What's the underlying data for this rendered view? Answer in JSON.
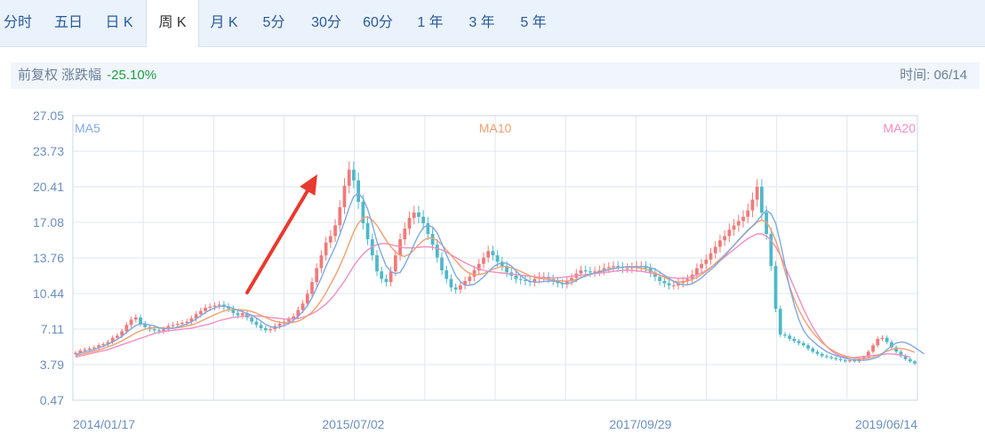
{
  "tabs": [
    {
      "label": "分时",
      "active": false
    },
    {
      "label": "五日",
      "active": false
    },
    {
      "label": "日 K",
      "active": false
    },
    {
      "label": "周 K",
      "active": true
    },
    {
      "label": "月 K",
      "active": false
    },
    {
      "label": "5分",
      "active": false
    },
    {
      "label": "30分",
      "active": false
    },
    {
      "label": "60分",
      "active": false
    },
    {
      "label": "1 年",
      "active": false
    },
    {
      "label": "3 年",
      "active": false
    },
    {
      "label": "5 年",
      "active": false
    }
  ],
  "info": {
    "left_label": "前复权 涨跌幅",
    "change_pct": "-25.10%",
    "right_label": "时间: 06/14"
  },
  "colors": {
    "up": "#f07a7a",
    "down": "#4fb8c8",
    "ma5": "#7fa9e0",
    "ma10": "#f0a070",
    "ma20": "#f08ec0",
    "arrow": "#e83a2e"
  },
  "chart_data": {
    "type": "candlestick",
    "y_ticks": [
      "27.05",
      "23.73",
      "20.41",
      "17.08",
      "13.76",
      "10.44",
      "7.11",
      "3.79",
      "0.47"
    ],
    "y_range": [
      0.47,
      27.05
    ],
    "x_labels": [
      {
        "label": "2014/01/17",
        "t": 0.0
      },
      {
        "label": "2015/07/02",
        "t": 0.332
      },
      {
        "label": "2017/09/29",
        "t": 0.672
      },
      {
        "label": "2019/06/14",
        "t": 1.0
      }
    ],
    "legend": {
      "ma5": "MA5",
      "ma10": "MA10",
      "ma20": "MA20"
    },
    "close": [
      4.9,
      5.1,
      5.2,
      5.3,
      5.4,
      5.6,
      5.7,
      5.9,
      6.3,
      6.5,
      6.9,
      7.5,
      8.0,
      8.2,
      7.6,
      7.3,
      7.1,
      7.0,
      6.9,
      7.1,
      7.4,
      7.5,
      7.6,
      7.7,
      7.8,
      8.1,
      8.5,
      8.8,
      9.1,
      9.2,
      9.3,
      9.4,
      9.2,
      9.0,
      8.6,
      8.4,
      8.6,
      8.2,
      7.8,
      7.5,
      7.2,
      7.0,
      7.1,
      7.4,
      7.6,
      7.8,
      8.0,
      8.3,
      8.9,
      9.5,
      10.4,
      11.5,
      12.8,
      14.0,
      15.2,
      15.8,
      16.8,
      18.5,
      20.5,
      22.0,
      21.0,
      19.0,
      17.0,
      15.5,
      14.0,
      12.5,
      11.8,
      11.5,
      12.5,
      14.0,
      15.5,
      16.5,
      17.5,
      18.0,
      17.6,
      17.0,
      16.0,
      15.0,
      13.8,
      12.6,
      11.8,
      11.0,
      10.8,
      11.2,
      11.6,
      12.0,
      12.6,
      13.2,
      13.8,
      14.4,
      14.0,
      13.4,
      13.0,
      12.4,
      12.1,
      11.8,
      11.7,
      11.6,
      11.5,
      11.8,
      12.0,
      12.0,
      11.8,
      11.6,
      11.4,
      11.3,
      11.6,
      11.9,
      12.3,
      12.6,
      12.5,
      12.4,
      12.5,
      12.6,
      12.8,
      12.9,
      13.0,
      12.9,
      12.8,
      12.8,
      12.9,
      13.0,
      13.0,
      12.8,
      12.4,
      12.0,
      11.6,
      11.4,
      11.2,
      11.2,
      11.4,
      11.6,
      11.8,
      12.2,
      12.8,
      13.2,
      13.6,
      14.2,
      14.8,
      15.4,
      15.8,
      16.4,
      16.8,
      17.2,
      17.6,
      18.2,
      19.2,
      20.4,
      18.0,
      16.0,
      13.0,
      9.0,
      6.6,
      6.5,
      6.2,
      6.0,
      5.8,
      5.6,
      5.3,
      5.0,
      4.8,
      4.6,
      4.5,
      4.4,
      4.3,
      4.2,
      4.1,
      4.2,
      4.1,
      4.3,
      4.5,
      5.0,
      5.6,
      6.2,
      6.3,
      5.9,
      5.4,
      5.0,
      4.6,
      4.3,
      4.1,
      3.9
    ],
    "ma5": [
      4.7,
      4.9,
      5.0,
      5.1,
      5.2,
      5.35,
      5.5,
      5.7,
      5.9,
      6.15,
      6.45,
      6.8,
      7.15,
      7.45,
      7.6,
      7.6,
      7.5,
      7.4,
      7.25,
      7.15,
      7.15,
      7.2,
      7.3,
      7.45,
      7.6,
      7.8,
      8.05,
      8.35,
      8.65,
      8.9,
      9.1,
      9.25,
      9.25,
      9.2,
      9.05,
      8.85,
      8.75,
      8.55,
      8.4,
      8.15,
      7.85,
      7.55,
      7.35,
      7.25,
      7.3,
      7.45,
      7.65,
      7.95,
      8.3,
      8.75,
      9.3,
      10.05,
      10.95,
      11.9,
      12.95,
      13.9,
      14.8,
      15.95,
      17.15,
      18.45,
      19.5,
      19.8,
      19.3,
      18.3,
      16.9,
      15.3,
      14.1,
      13.0,
      12.5,
      12.3,
      12.4,
      13.1,
      14.0,
      15.0,
      15.9,
      16.6,
      16.8,
      16.65,
      16.1,
      15.1,
      14.05,
      13.05,
      12.1,
      11.55,
      11.2,
      11.2,
      11.3,
      11.6,
      12.0,
      12.45,
      12.9,
      13.15,
      13.3,
      13.25,
      13.0,
      12.55,
      12.1,
      11.8,
      11.55,
      11.5,
      11.5,
      11.55,
      11.6,
      11.6,
      11.55,
      11.4,
      11.35,
      11.45,
      11.65,
      11.9,
      12.1,
      12.25,
      12.35,
      12.45,
      12.55,
      12.65,
      12.75,
      12.85,
      12.9,
      12.95,
      12.95,
      12.95,
      12.95,
      12.95,
      12.85,
      12.7,
      12.45,
      12.15,
      11.85,
      11.55,
      11.35,
      11.25,
      11.25,
      11.35,
      11.6,
      11.9,
      12.3,
      12.65,
      13.05,
      13.5,
      13.95,
      14.45,
      14.95,
      15.45,
      15.9,
      16.35,
      16.75,
      17.2,
      17.75,
      18.2,
      17.9,
      17.0,
      15.2,
      13.1,
      11.0,
      9.4,
      8.0,
      7.0,
      6.4,
      6.0,
      5.6,
      5.3,
      5.0,
      4.8,
      4.65,
      4.5,
      4.4,
      4.3,
      4.25,
      4.2,
      4.2,
      4.25,
      4.35,
      4.5,
      4.8,
      5.2,
      5.55,
      5.8,
      5.9,
      5.85,
      5.65,
      5.4,
      5.1,
      4.8
    ],
    "ma10": [
      4.6,
      4.75,
      4.85,
      4.95,
      5.05,
      5.15,
      5.3,
      5.45,
      5.6,
      5.8,
      6.0,
      6.25,
      6.5,
      6.75,
      6.95,
      7.1,
      7.2,
      7.25,
      7.25,
      7.2,
      7.2,
      7.2,
      7.25,
      7.3,
      7.4,
      7.5,
      7.65,
      7.85,
      8.05,
      8.25,
      8.45,
      8.65,
      8.8,
      8.9,
      8.95,
      8.95,
      8.9,
      8.85,
      8.75,
      8.6,
      8.4,
      8.2,
      8.0,
      7.85,
      7.75,
      7.7,
      7.7,
      7.75,
      7.85,
      8.05,
      8.35,
      8.7,
      9.2,
      9.8,
      10.5,
      11.3,
      12.1,
      13.0,
      14.0,
      15.1,
      16.2,
      17.0,
      17.5,
      17.6,
      17.3,
      16.8,
      16.1,
      15.4,
      14.8,
      14.3,
      14.0,
      13.9,
      14.1,
      14.5,
      15.0,
      15.4,
      15.6,
      15.6,
      15.4,
      15.0,
      14.5,
      14.0,
      13.5,
      13.0,
      12.6,
      12.3,
      12.2,
      12.2,
      12.3,
      12.5,
      12.7,
      12.85,
      12.95,
      12.95,
      12.85,
      12.7,
      12.5,
      12.3,
      12.1,
      11.95,
      11.85,
      11.8,
      11.75,
      11.7,
      11.65,
      11.6,
      11.6,
      11.65,
      11.75,
      11.9,
      12.05,
      12.2,
      12.35,
      12.5,
      12.6,
      12.7,
      12.8,
      12.85,
      12.9,
      12.9,
      12.9,
      12.85,
      12.8,
      12.7,
      12.55,
      12.35,
      12.15,
      11.95,
      11.75,
      11.6,
      11.5,
      11.5,
      11.6,
      11.75,
      11.95,
      12.2,
      12.5,
      12.85,
      13.25,
      13.65,
      14.05,
      14.5,
      14.95,
      15.4,
      15.85,
      16.3,
      16.7,
      17.1,
      17.3,
      17.1,
      16.4,
      15.4,
      14.0,
      12.5,
      11.1,
      9.9,
      8.9,
      8.1,
      7.4,
      6.8,
      6.3,
      5.85,
      5.5,
      5.2,
      4.95,
      4.75,
      4.6,
      4.5,
      4.4,
      4.35,
      4.35,
      4.4,
      4.5,
      4.65,
      4.85,
      5.05,
      5.2,
      5.3,
      5.3,
      5.25,
      5.1,
      4.95
    ],
    "ma20": [
      4.5,
      4.6,
      4.7,
      4.8,
      4.9,
      5.0,
      5.1,
      5.2,
      5.35,
      5.5,
      5.65,
      5.8,
      5.95,
      6.1,
      6.25,
      6.4,
      6.55,
      6.7,
      6.8,
      6.9,
      6.95,
      7.0,
      7.05,
      7.1,
      7.15,
      7.2,
      7.3,
      7.4,
      7.5,
      7.6,
      7.75,
      7.9,
      8.0,
      8.1,
      8.2,
      8.25,
      8.3,
      8.35,
      8.35,
      8.35,
      8.3,
      8.25,
      8.2,
      8.15,
      8.1,
      8.05,
      8.05,
      8.05,
      8.1,
      8.2,
      8.35,
      8.55,
      8.8,
      9.1,
      9.45,
      9.9,
      10.4,
      11.0,
      11.6,
      12.3,
      13.0,
      13.6,
      14.1,
      14.5,
      14.8,
      15.0,
      15.1,
      15.1,
      15.0,
      14.9,
      14.8,
      14.7,
      14.7,
      14.7,
      14.75,
      14.8,
      14.8,
      14.75,
      14.65,
      14.5,
      14.3,
      14.05,
      13.8,
      13.55,
      13.3,
      13.1,
      12.9,
      12.75,
      12.6,
      12.5,
      12.45,
      12.4,
      12.35,
      12.3,
      12.25,
      12.2,
      12.15,
      12.1,
      12.05,
      12.0,
      11.95,
      11.9,
      11.9,
      11.9,
      11.9,
      11.95,
      12.0,
      12.05,
      12.1,
      12.15,
      12.2,
      12.25,
      12.3,
      12.35,
      12.4,
      12.45,
      12.5,
      12.55,
      12.6,
      12.6,
      12.6,
      12.55,
      12.5,
      12.45,
      12.35,
      12.25,
      12.15,
      12.05,
      11.95,
      11.9,
      11.85,
      11.85,
      11.9,
      12.0,
      12.15,
      12.35,
      12.6,
      12.9,
      13.2,
      13.5,
      13.85,
      14.2,
      14.55,
      14.9,
      15.25,
      15.55,
      15.8,
      16.0,
      16.0,
      15.8,
      15.4,
      14.8,
      14.0,
      13.0,
      12.0,
      11.0,
      10.0,
      9.0,
      8.1,
      7.3,
      6.6,
      6.0,
      5.5,
      5.1,
      4.8,
      4.6,
      4.5,
      4.45,
      4.45,
      4.5,
      4.55,
      4.6,
      4.65,
      4.7,
      4.75,
      4.8,
      4.8,
      4.75,
      4.7,
      4.6,
      4.5
    ]
  }
}
